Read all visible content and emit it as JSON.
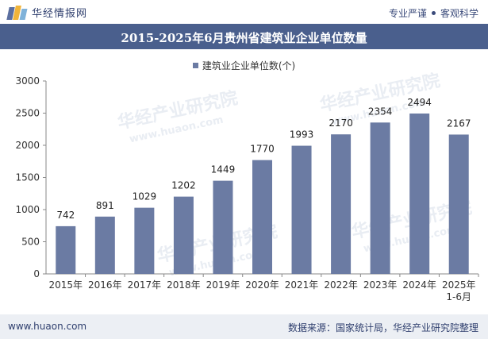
{
  "header": {
    "logo_text": "华经情报网",
    "slogan_left": "专业严谨",
    "slogan_right": "客观科学"
  },
  "footer": {
    "url": "www.huaon.com",
    "source": "数据来源：国家统计局，华经产业研究院整理"
  },
  "watermark": {
    "text": "华经产业研究院",
    "url": "www.huaon.com"
  },
  "colors": {
    "bar": "#6b7ba3",
    "title_bar": "#4a5f8d"
  },
  "chart_data": {
    "type": "bar",
    "title": "2015-2025年6月贵州省建筑业企业单位数量",
    "categories": [
      "2015年",
      "2016年",
      "2017年",
      "2018年",
      "2019年",
      "2020年",
      "2021年",
      "2022年",
      "2023年",
      "2024年",
      "2025年 1-6月"
    ],
    "category_lines": [
      [
        "2015年"
      ],
      [
        "2016年"
      ],
      [
        "2017年"
      ],
      [
        "2018年"
      ],
      [
        "2019年"
      ],
      [
        "2020年"
      ],
      [
        "2021年"
      ],
      [
        "2022年"
      ],
      [
        "2023年"
      ],
      [
        "2024年"
      ],
      [
        "2025年",
        "1-6月"
      ]
    ],
    "series": [
      {
        "name": "建筑业企业单位数(个)",
        "values": [
          742,
          891,
          1029,
          1202,
          1449,
          1770,
          1993,
          2170,
          2354,
          2494,
          2167
        ]
      }
    ],
    "xlabel": "",
    "ylabel": "",
    "ylim": [
      0,
      3000
    ],
    "yticks": [
      0,
      500,
      1000,
      1500,
      2000,
      2500,
      3000
    ],
    "grid": false,
    "legend": "top-center"
  }
}
